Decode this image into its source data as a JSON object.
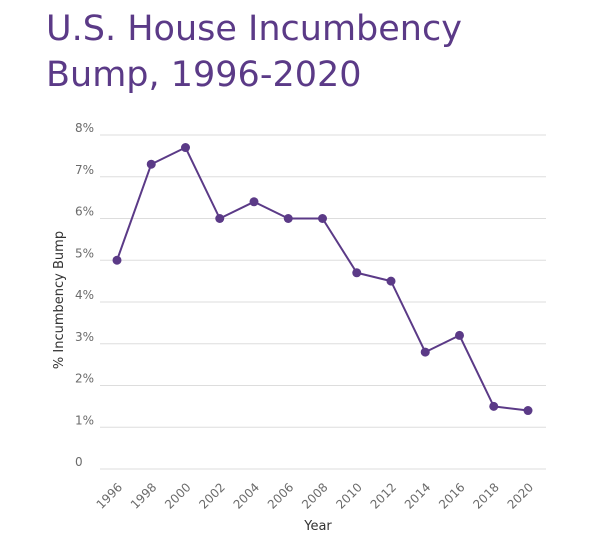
{
  "title": "U.S. House Incumbency Bump, 1996-2020",
  "colors": {
    "title": "#5b3a87",
    "series": "#5b3a87",
    "grid": "#dddddd",
    "tick": "#6b6b6b"
  },
  "chart_data": {
    "type": "line",
    "title": "U.S. House Incumbency Bump, 1996-2020",
    "xlabel": "Year",
    "ylabel": "% Incumbency Bump",
    "ylim": [
      0,
      8
    ],
    "yticks": [
      0,
      1,
      2,
      3,
      4,
      5,
      6,
      7,
      8
    ],
    "ytick_labels": [
      "0",
      "1%",
      "2%",
      "3%",
      "4%",
      "5%",
      "6%",
      "7%",
      "8%"
    ],
    "categories": [
      "1996",
      "1998",
      "2000",
      "2002",
      "2004",
      "2006",
      "2008",
      "2010",
      "2012",
      "2014",
      "2016",
      "2018",
      "2020"
    ],
    "series": [
      {
        "values": [
          5.0,
          7.3,
          7.7,
          6.0,
          6.4,
          6.0,
          6.0,
          4.7,
          4.5,
          2.8,
          3.2,
          1.5,
          1.4
        ]
      }
    ],
    "grid": true,
    "legend": "none"
  }
}
